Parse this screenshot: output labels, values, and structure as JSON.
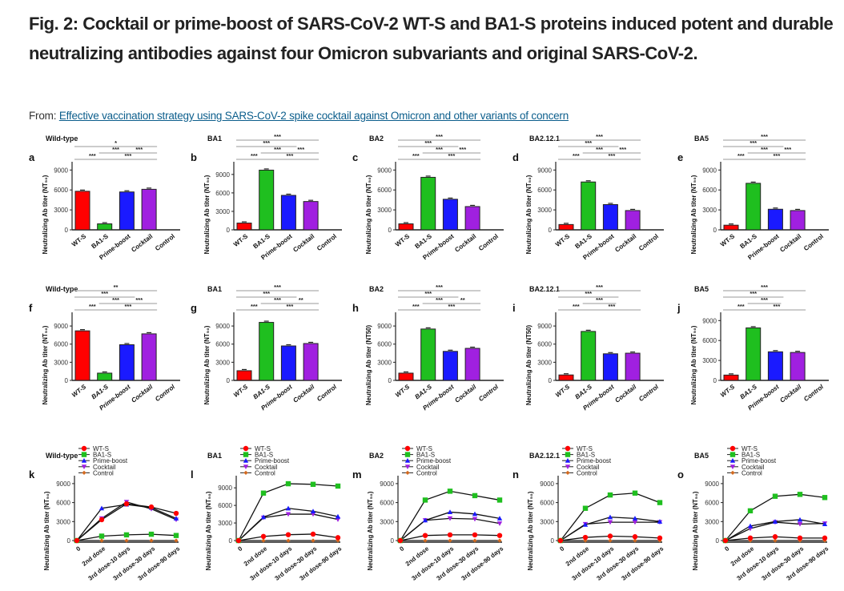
{
  "figure": {
    "title": "Fig. 2: Cocktail or prime-boost of SARS-CoV-2 WT-S and BA1-S proteins induced potent and durable neutralizing antibodies against four Omicron subvariants and original SARS-CoV-2.",
    "from_label": "From:",
    "source_link": "Effective vaccination strategy using SARS-CoV-2 spike cocktail against Omicron and other variants of concern"
  },
  "colors": {
    "WT-S": "#ff0000",
    "BA1-S": "#1fbf1f",
    "Prime-boost": "#1a1aff",
    "Cocktail": "#a020e0",
    "Control": "#d2691e",
    "link": "#0c5e8c"
  },
  "chart_data": [
    {
      "panel": "a",
      "type": "bar",
      "title": "Wild-type",
      "ylabel": "Neutralizing Ab titer (NT₅₀)",
      "yticks": [
        0,
        3000,
        6000,
        9000
      ],
      "ylim": [
        0,
        10000
      ],
      "categories": [
        "WT-S",
        "BA1-S",
        "Prime-boost",
        "Cocktail",
        "Control"
      ],
      "values": [
        5800,
        900,
        5700,
        6100,
        0
      ],
      "significance": [
        {
          "from": 1,
          "to": 4,
          "label": "*",
          "level": 2
        },
        {
          "from": 2,
          "to": 3,
          "label": "***",
          "level": 1
        },
        {
          "from": 3,
          "to": 4,
          "label": "***",
          "level": 1
        },
        {
          "from": 1,
          "to": 2,
          "label": "***",
          "level": 0
        },
        {
          "from": 2,
          "to": 4,
          "label": "***",
          "level": 0
        }
      ]
    },
    {
      "panel": "b",
      "type": "bar",
      "title": "BA1",
      "ylabel": "Neutralizing Ab titer (NT₅₀)",
      "yticks": [
        0,
        3000,
        6000,
        9000
      ],
      "ylim": [
        0,
        10800
      ],
      "categories": [
        "WT-S",
        "BA1-S",
        "Prime-boost",
        "Cocktail",
        "Control"
      ],
      "values": [
        1100,
        9700,
        5600,
        4600,
        0
      ],
      "significance": [
        {
          "from": 1,
          "to": 4,
          "label": "***",
          "level": 3
        },
        {
          "from": 1,
          "to": 3,
          "label": "***",
          "level": 2
        },
        {
          "from": 2,
          "to": 3,
          "label": "***",
          "level": 1
        },
        {
          "from": 3,
          "to": 4,
          "label": "***",
          "level": 1
        },
        {
          "from": 1,
          "to": 2,
          "label": "***",
          "level": 0
        },
        {
          "from": 2,
          "to": 4,
          "label": "***",
          "level": 0
        }
      ]
    },
    {
      "panel": "c",
      "type": "bar",
      "title": "BA2",
      "ylabel": "Neutralizing Ab titer (NT₅₀)",
      "yticks": [
        0,
        3000,
        6000,
        9000
      ],
      "ylim": [
        0,
        10000
      ],
      "categories": [
        "WT-S",
        "BA1-S",
        "Prime-boost",
        "Cocktail",
        "Control"
      ],
      "values": [
        900,
        7900,
        4600,
        3500,
        0
      ],
      "significance": [
        {
          "from": 1,
          "to": 4,
          "label": "***",
          "level": 3
        },
        {
          "from": 1,
          "to": 3,
          "label": "***",
          "level": 2
        },
        {
          "from": 2,
          "to": 3,
          "label": "***",
          "level": 1
        },
        {
          "from": 3,
          "to": 4,
          "label": "***",
          "level": 1
        },
        {
          "from": 1,
          "to": 2,
          "label": "***",
          "level": 0
        },
        {
          "from": 2,
          "to": 4,
          "label": "***",
          "level": 0
        }
      ]
    },
    {
      "panel": "d",
      "type": "bar",
      "title": "BA2.12.1",
      "ylabel": "Neutralizing Ab titer (NT₅₀)",
      "yticks": [
        0,
        3000,
        6000,
        9000
      ],
      "ylim": [
        0,
        10000
      ],
      "categories": [
        "WT-S",
        "BA1-S",
        "Prime-boost",
        "Cocktail",
        "Control"
      ],
      "values": [
        800,
        7200,
        3800,
        2900,
        0
      ],
      "significance": [
        {
          "from": 1,
          "to": 4,
          "label": "***",
          "level": 3
        },
        {
          "from": 1,
          "to": 3,
          "label": "***",
          "level": 2
        },
        {
          "from": 2,
          "to": 3,
          "label": "***",
          "level": 1
        },
        {
          "from": 3,
          "to": 4,
          "label": "***",
          "level": 1
        },
        {
          "from": 1,
          "to": 2,
          "label": "***",
          "level": 0
        },
        {
          "from": 2,
          "to": 4,
          "label": "***",
          "level": 0
        }
      ]
    },
    {
      "panel": "e",
      "type": "bar",
      "title": "BA5",
      "ylabel": "Neutralizing Ab titer (NT₅₀)",
      "yticks": [
        0,
        3000,
        6000,
        9000
      ],
      "ylim": [
        0,
        10000
      ],
      "categories": [
        "WT-S",
        "BA1-S",
        "Prime-boost",
        "Cocktail",
        "Control"
      ],
      "values": [
        700,
        7000,
        3100,
        2900,
        0
      ],
      "significance": [
        {
          "from": 1,
          "to": 4,
          "label": "***",
          "level": 3
        },
        {
          "from": 1,
          "to": 3,
          "label": "***",
          "level": 2
        },
        {
          "from": 2,
          "to": 3,
          "label": "***",
          "level": 1
        },
        {
          "from": 3,
          "to": 4,
          "label": "***",
          "level": 1
        },
        {
          "from": 1,
          "to": 2,
          "label": "***",
          "level": 0
        },
        {
          "from": 2,
          "to": 4,
          "label": "***",
          "level": 0
        }
      ]
    },
    {
      "panel": "f",
      "type": "bar",
      "title": "Wild-type",
      "ylabel": "Neutralizing Ab titer (NT₅₀)",
      "yticks": [
        0,
        3000,
        6000,
        9000
      ],
      "ylim": [
        0,
        11000
      ],
      "categories": [
        "WT-S",
        "BA1-S",
        "Prime-boost",
        "Cocktail",
        "Control"
      ],
      "values": [
        8200,
        1200,
        5900,
        7700,
        0
      ],
      "significance": [
        {
          "from": 1,
          "to": 4,
          "label": "**",
          "level": 3
        },
        {
          "from": 1,
          "to": 3,
          "label": "***",
          "level": 2
        },
        {
          "from": 2,
          "to": 3,
          "label": "***",
          "level": 1
        },
        {
          "from": 3,
          "to": 4,
          "label": "***",
          "level": 1
        },
        {
          "from": 1,
          "to": 2,
          "label": "***",
          "level": 0
        },
        {
          "from": 2,
          "to": 4,
          "label": "***",
          "level": 0
        }
      ]
    },
    {
      "panel": "g",
      "type": "bar",
      "title": "BA1",
      "ylabel": "Neutralizing Ab titer (NT₅₀)",
      "yticks": [
        0,
        3000,
        6000,
        9000
      ],
      "ylim": [
        0,
        11000
      ],
      "categories": [
        "WT-S",
        "BA1-S",
        "Prime-boost",
        "Cocktail",
        "Control"
      ],
      "values": [
        1600,
        9600,
        5700,
        6100,
        0
      ],
      "significance": [
        {
          "from": 1,
          "to": 4,
          "label": "***",
          "level": 3
        },
        {
          "from": 1,
          "to": 3,
          "label": "***",
          "level": 2
        },
        {
          "from": 2,
          "to": 3,
          "label": "***",
          "level": 1
        },
        {
          "from": 3,
          "to": 4,
          "label": "**",
          "level": 1
        },
        {
          "from": 1,
          "to": 2,
          "label": "***",
          "level": 0
        },
        {
          "from": 2,
          "to": 4,
          "label": "***",
          "level": 0
        }
      ]
    },
    {
      "panel": "h",
      "type": "bar",
      "title": "BA2",
      "ylabel": "Neutralizing Ab titer (NT50)",
      "yticks": [
        0,
        3000,
        6000,
        9000
      ],
      "ylim": [
        0,
        11000
      ],
      "categories": [
        "WT-S",
        "BA1-S",
        "Prime-boost",
        "Cocktail",
        "Control"
      ],
      "values": [
        1200,
        8500,
        4800,
        5300,
        0
      ],
      "significance": [
        {
          "from": 1,
          "to": 4,
          "label": "***",
          "level": 3
        },
        {
          "from": 1,
          "to": 3,
          "label": "***",
          "level": 2
        },
        {
          "from": 2,
          "to": 3,
          "label": "***",
          "level": 1
        },
        {
          "from": 3,
          "to": 4,
          "label": "**",
          "level": 1
        },
        {
          "from": 1,
          "to": 2,
          "label": "***",
          "level": 0
        },
        {
          "from": 2,
          "to": 4,
          "label": "***",
          "level": 0
        }
      ]
    },
    {
      "panel": "i",
      "type": "bar",
      "title": "BA2.12.1",
      "ylabel": "Neutralizing Ab titer (NT50)",
      "yticks": [
        0,
        3000,
        6000,
        9000
      ],
      "ylim": [
        0,
        11000
      ],
      "categories": [
        "WT-S",
        "BA1-S",
        "Prime-boost",
        "Cocktail",
        "Control"
      ],
      "values": [
        900,
        8100,
        4400,
        4500,
        0
      ],
      "significance": [
        {
          "from": 1,
          "to": 4,
          "label": "***",
          "level": 3
        },
        {
          "from": 1,
          "to": 3,
          "label": "***",
          "level": 2
        },
        {
          "from": 2,
          "to": 3,
          "label": "***",
          "level": 1
        },
        {
          "from": 1,
          "to": 2,
          "label": "***",
          "level": 0
        },
        {
          "from": 2,
          "to": 4,
          "label": "***",
          "level": 0
        }
      ]
    },
    {
      "panel": "j",
      "type": "bar",
      "title": "BA5",
      "ylabel": "Neutralizing Ab titer (NT₅₀)",
      "yticks": [
        0,
        3000,
        6000,
        9000
      ],
      "ylim": [
        0,
        10000
      ],
      "categories": [
        "WT-S",
        "BA1-S",
        "Prime-boost",
        "Cocktail",
        "Control"
      ],
      "values": [
        800,
        7900,
        4300,
        4200,
        0
      ],
      "significance": [
        {
          "from": 1,
          "to": 4,
          "label": "***",
          "level": 3
        },
        {
          "from": 1,
          "to": 3,
          "label": "***",
          "level": 2
        },
        {
          "from": 2,
          "to": 3,
          "label": "***",
          "level": 1
        },
        {
          "from": 1,
          "to": 2,
          "label": "***",
          "level": 0
        },
        {
          "from": 2,
          "to": 4,
          "label": "***",
          "level": 0
        }
      ]
    },
    {
      "panel": "k",
      "type": "line",
      "title": "Wild-type",
      "ylabel": "Neutralizing Ab titer (NT₅₀)",
      "yticks": [
        0,
        3000,
        6000,
        9000
      ],
      "ylim": [
        0,
        10000
      ],
      "x": [
        "0",
        "2nd dose",
        "3rd dose-10 days",
        "3rd dose-30 days",
        "3rd dose-90 days"
      ],
      "series": [
        {
          "name": "WT-S",
          "values": [
            0,
            3300,
            5800,
            5300,
            4300
          ]
        },
        {
          "name": "BA1-S",
          "values": [
            0,
            700,
            900,
            1000,
            800
          ]
        },
        {
          "name": "Prime-boost",
          "values": [
            0,
            5100,
            5700,
            5200,
            3500
          ]
        },
        {
          "name": "Cocktail",
          "values": [
            0,
            3500,
            6100,
            5000,
            3300
          ]
        },
        {
          "name": "Control",
          "values": [
            0,
            0,
            0,
            0,
            0
          ]
        }
      ]
    },
    {
      "panel": "l",
      "type": "line",
      "title": "BA1",
      "ylabel": "Neutralizing Ab titer (NT₅₀)",
      "yticks": [
        0,
        3000,
        6000,
        9000
      ],
      "ylim": [
        0,
        10800
      ],
      "x": [
        "0",
        "2nd dose",
        "3rd dose-10 days",
        "3rd dose-30 days",
        "3rd dose-90 days"
      ],
      "series": [
        {
          "name": "WT-S",
          "values": [
            0,
            700,
            1000,
            1100,
            500
          ]
        },
        {
          "name": "BA1-S",
          "values": [
            0,
            8100,
            9700,
            9600,
            9300
          ]
        },
        {
          "name": "Prime-boost",
          "values": [
            0,
            4000,
            5500,
            5000,
            4100
          ]
        },
        {
          "name": "Cocktail",
          "values": [
            0,
            3900,
            4500,
            4500,
            3600
          ]
        },
        {
          "name": "Control",
          "values": [
            0,
            0,
            0,
            0,
            0
          ]
        }
      ]
    },
    {
      "panel": "m",
      "type": "line",
      "title": "BA2",
      "ylabel": "Neutralizing Ab titer (NT₅₀)",
      "yticks": [
        0,
        3000,
        6000,
        9000
      ],
      "ylim": [
        0,
        10000
      ],
      "x": [
        "0",
        "2nd dose",
        "3rd dose-10 days",
        "3rd dose-30 days",
        "3rd dose-90 days"
      ],
      "series": [
        {
          "name": "WT-S",
          "values": [
            0,
            800,
            900,
            900,
            800
          ]
        },
        {
          "name": "BA1-S",
          "values": [
            0,
            6400,
            7800,
            7100,
            6400
          ]
        },
        {
          "name": "Prime-boost",
          "values": [
            0,
            3200,
            4500,
            4200,
            3500
          ]
        },
        {
          "name": "Cocktail",
          "values": [
            0,
            3200,
            3500,
            3400,
            2700
          ]
        },
        {
          "name": "Control",
          "values": [
            0,
            0,
            0,
            0,
            0
          ]
        }
      ]
    },
    {
      "panel": "n",
      "type": "line",
      "title": "BA2.12.1",
      "ylabel": "Neutralizing Ab titer (NT₅₀)",
      "yticks": [
        0,
        3000,
        6000,
        9000
      ],
      "ylim": [
        0,
        10000
      ],
      "x": [
        "0",
        "2nd dose",
        "3rd dose-10 days",
        "3rd dose-30 days",
        "3rd dose-90 days"
      ],
      "series": [
        {
          "name": "WT-S",
          "values": [
            0,
            500,
            700,
            600,
            400
          ]
        },
        {
          "name": "BA1-S",
          "values": [
            0,
            5100,
            7200,
            7500,
            6000
          ]
        },
        {
          "name": "Prime-boost",
          "values": [
            0,
            2500,
            3700,
            3500,
            3000
          ]
        },
        {
          "name": "Cocktail",
          "values": [
            0,
            2600,
            2900,
            2900,
            2900
          ]
        },
        {
          "name": "Control",
          "values": [
            0,
            0,
            0,
            0,
            0
          ]
        }
      ]
    },
    {
      "panel": "o",
      "type": "line",
      "title": "BA5",
      "ylabel": "Neutralizing Ab titer (NT₅₀)",
      "yticks": [
        0,
        3000,
        6000,
        9000
      ],
      "ylim": [
        0,
        10000
      ],
      "x": [
        "0",
        "2nd dose",
        "3rd dose-10 days",
        "3rd dose-30 days",
        "3rd dose-90 days"
      ],
      "series": [
        {
          "name": "WT-S",
          "values": [
            0,
            400,
            600,
            400,
            400
          ]
        },
        {
          "name": "BA1-S",
          "values": [
            0,
            4700,
            7000,
            7300,
            6800
          ]
        },
        {
          "name": "Prime-boost",
          "values": [
            0,
            2300,
            3000,
            3300,
            2600
          ]
        },
        {
          "name": "Cocktail",
          "values": [
            0,
            1900,
            2900,
            2600,
            2700
          ]
        },
        {
          "name": "Control",
          "values": [
            0,
            0,
            0,
            0,
            0
          ]
        }
      ]
    }
  ]
}
